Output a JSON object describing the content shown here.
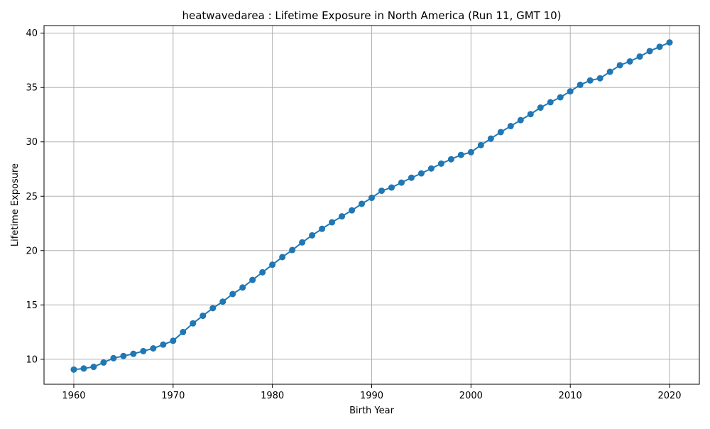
{
  "chart_data": {
    "type": "line",
    "title": "heatwavedarea : Lifetime Exposure in North America (Run 11, GMT 10)",
    "xlabel": "Birth Year",
    "ylabel": "Lifetime Exposure",
    "xlim": [
      1957,
      2023
    ],
    "ylim": [
      7.7,
      40.7
    ],
    "grid": true,
    "marker": "circle",
    "colors": {
      "series": "#1f77b4",
      "grid": "#b0b0b0",
      "axis": "#000000"
    },
    "x_ticks": [
      1960,
      1970,
      1980,
      1990,
      2000,
      2010,
      2020
    ],
    "x_tick_labels": [
      "1960",
      "1970",
      "1980",
      "1990",
      "2000",
      "2010",
      "2020"
    ],
    "y_ticks": [
      10,
      15,
      20,
      25,
      30,
      35,
      40
    ],
    "y_tick_labels": [
      "10",
      "15",
      "20",
      "25",
      "30",
      "35",
      "40"
    ],
    "x": [
      1960,
      1961,
      1962,
      1963,
      1964,
      1965,
      1966,
      1967,
      1968,
      1969,
      1970,
      1971,
      1972,
      1973,
      1974,
      1975,
      1976,
      1977,
      1978,
      1979,
      1980,
      1981,
      1982,
      1983,
      1984,
      1985,
      1986,
      1987,
      1988,
      1989,
      1990,
      1991,
      1992,
      1993,
      1994,
      1995,
      1996,
      1997,
      1998,
      1999,
      2000,
      2001,
      2002,
      2003,
      2004,
      2005,
      2006,
      2007,
      2008,
      2009,
      2010,
      2011,
      2012,
      2013,
      2014,
      2015,
      2016,
      2017,
      2018,
      2019,
      2020
    ],
    "series": [
      {
        "values": [
          9.05,
          9.15,
          9.3,
          9.7,
          10.1,
          10.3,
          10.5,
          10.75,
          11.0,
          11.35,
          11.7,
          12.5,
          13.3,
          14.0,
          14.7,
          15.3,
          16.0,
          16.6,
          17.3,
          18.0,
          18.7,
          19.4,
          20.05,
          20.75,
          21.4,
          22.0,
          22.6,
          23.15,
          23.7,
          24.3,
          24.85,
          25.5,
          25.8,
          26.25,
          26.7,
          27.1,
          27.55,
          28.0,
          28.4,
          28.8,
          29.05,
          29.7,
          30.3,
          30.9,
          31.45,
          32.0,
          32.55,
          33.15,
          33.65,
          34.1,
          34.65,
          35.25,
          35.65,
          35.85,
          36.45,
          37.05,
          37.4,
          37.85,
          38.35,
          38.75,
          39.15
        ]
      }
    ]
  }
}
